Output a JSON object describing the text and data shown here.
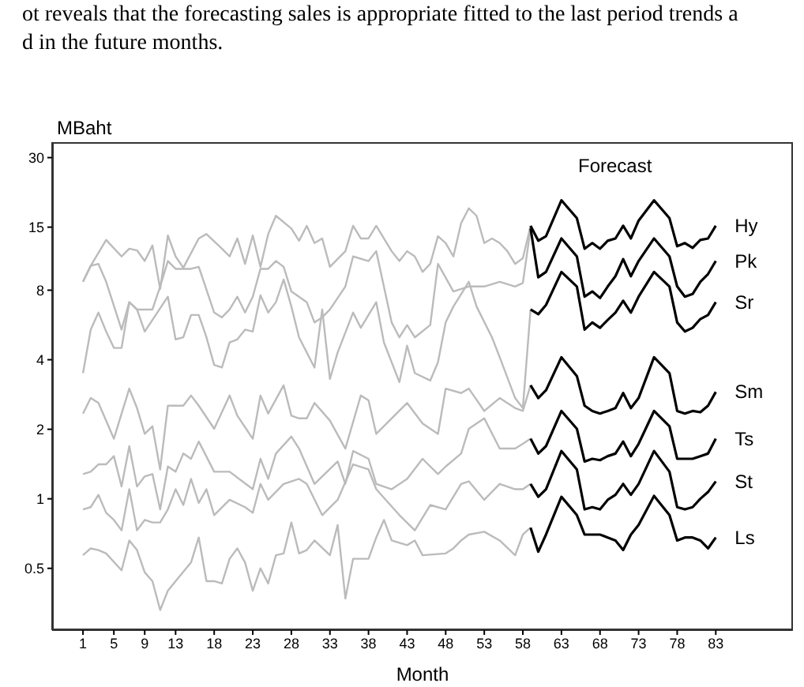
{
  "chart_data": {
    "type": "line",
    "xlabel": "Month",
    "ylabel": "MBaht",
    "annotations": [
      "ot reveals that the forecasting sales is appropriate fitted to the last period trends a",
      "d in the future months.",
      "Forecast"
    ],
    "xlim": [
      -3,
      93
    ],
    "xticks": [
      1,
      5,
      9,
      13,
      18,
      23,
      28,
      33,
      38,
      43,
      48,
      53,
      58,
      63,
      68,
      73,
      78,
      83
    ],
    "ylim": [
      0.27,
      35
    ],
    "yticks": [
      0.5,
      1,
      2,
      4,
      8,
      15,
      30
    ],
    "log": "y",
    "grid": false,
    "legend": false,
    "marker": "none",
    "line_style": "solid",
    "series": [
      {
        "color": "#bbbbbb",
        "x": [
          1,
          2,
          4,
          6,
          7,
          8,
          9,
          10,
          11,
          12,
          13,
          14,
          16,
          17,
          19,
          20,
          21,
          22,
          23,
          24,
          25,
          26,
          28,
          29,
          30,
          31,
          32,
          33,
          35,
          36,
          37,
          38,
          39,
          41,
          42,
          43,
          44,
          45,
          46,
          47,
          48,
          49,
          50,
          51,
          52,
          53,
          54,
          55,
          56,
          57,
          58,
          59
        ],
        "values": [
          8.7,
          10.2,
          13.2,
          11.2,
          12.1,
          11.9,
          10.7,
          12.5,
          8.1,
          13.8,
          11.2,
          10,
          13.4,
          14,
          12.1,
          11.2,
          13.4,
          10.4,
          13.8,
          10.1,
          14,
          16.8,
          14.8,
          13.1,
          15.2,
          12.8,
          13.4,
          10.1,
          11.8,
          15.2,
          13.4,
          13.4,
          15.2,
          11.8,
          10.7,
          11.8,
          11.2,
          9.6,
          10.4,
          13.7,
          12.8,
          11.2,
          15.6,
          18.1,
          16.8,
          12.8,
          13.4,
          12.8,
          11.8,
          10.4,
          11,
          15.2
        ]
      },
      {
        "color": "#bbbbbb",
        "x": [
          1,
          2,
          3,
          4,
          6,
          7,
          8,
          10,
          11,
          12,
          13,
          15,
          16,
          18,
          19,
          20,
          21,
          22,
          23,
          24,
          25,
          26,
          27,
          28,
          30,
          31,
          32,
          33,
          35,
          36,
          38,
          39,
          41,
          42,
          43,
          44,
          46,
          47,
          49,
          51,
          53,
          55,
          57,
          58,
          59
        ],
        "values": [
          8.7,
          10.2,
          10.4,
          8.7,
          5.4,
          7.1,
          6.6,
          6.6,
          8.3,
          10.7,
          9.9,
          9.9,
          10.1,
          6.4,
          6.1,
          6.6,
          7.5,
          6.4,
          7.5,
          9.9,
          9.9,
          10.7,
          10.1,
          7.9,
          7.1,
          5.8,
          6.1,
          6.6,
          8.3,
          11.2,
          10.7,
          11.8,
          5.8,
          5,
          5.65,
          5,
          5.65,
          10.4,
          7.9,
          8.3,
          8.3,
          8.7,
          8.3,
          8.6,
          14.8
        ]
      },
      {
        "color": "#bbbbbb",
        "x": [
          1,
          2,
          3,
          4,
          5,
          6,
          7,
          8,
          9,
          10,
          12,
          13,
          14,
          15,
          16,
          17,
          18,
          19,
          20,
          21,
          22,
          23,
          24,
          25,
          26,
          27,
          28,
          29,
          31,
          32,
          33,
          34,
          36,
          37,
          39,
          40,
          42,
          43,
          44,
          46,
          47,
          48,
          49,
          51,
          52,
          54,
          55,
          57,
          58,
          59
        ],
        "values": [
          3.5,
          5.4,
          6.4,
          5.3,
          4.5,
          4.5,
          7.1,
          6.6,
          5.3,
          5.95,
          7.5,
          4.9,
          5,
          6.25,
          6.25,
          5,
          3.8,
          3.7,
          4.75,
          4.9,
          5.4,
          5.3,
          7.6,
          6.4,
          7.1,
          8.9,
          6.8,
          5,
          3.7,
          6.6,
          3.3,
          4.3,
          6.4,
          5.5,
          7.1,
          4.75,
          3.2,
          4.6,
          3.5,
          3.25,
          3.9,
          5.8,
          6.8,
          8.7,
          6.8,
          5,
          4.1,
          2.73,
          2.47,
          6.6
        ]
      },
      {
        "color": "#bbbbbb",
        "x": [
          1,
          2,
          3,
          4,
          5,
          7,
          8,
          9,
          10,
          11,
          12,
          14,
          15,
          16,
          18,
          20,
          21,
          23,
          24,
          25,
          27,
          28,
          29,
          30,
          31,
          33,
          35,
          37,
          38,
          39,
          41,
          43,
          45,
          47,
          48,
          50,
          51,
          53,
          55,
          57,
          58,
          59
        ],
        "values": [
          2.34,
          2.73,
          2.6,
          2.18,
          1.82,
          3,
          2.47,
          1.91,
          2.06,
          1.34,
          2.53,
          2.53,
          2.8,
          2.53,
          2.01,
          2.8,
          2.29,
          1.82,
          2.8,
          2.34,
          3.1,
          2.29,
          2.23,
          2.23,
          2.6,
          2.18,
          1.65,
          2.8,
          2.67,
          1.91,
          2.23,
          2.6,
          2.12,
          1.91,
          3,
          2.87,
          3,
          2.4,
          2.73,
          2.47,
          2.4,
          3.1
        ]
      },
      {
        "color": "#bbbbbb",
        "x": [
          1,
          2,
          3,
          4,
          5,
          6,
          7,
          8,
          9,
          10,
          11,
          12,
          13,
          14,
          15,
          16,
          18,
          20,
          23,
          24,
          25,
          26,
          28,
          29,
          31,
          34,
          35,
          36,
          38,
          39,
          41,
          43,
          45,
          47,
          48,
          50,
          51,
          53,
          55,
          57,
          58,
          59
        ],
        "values": [
          1.28,
          1.31,
          1.41,
          1.41,
          1.53,
          1.13,
          1.69,
          1.13,
          1.25,
          1.28,
          0.9,
          1.38,
          1.31,
          1.57,
          1.49,
          1.77,
          1.31,
          1.31,
          1.1,
          1.49,
          1.22,
          1.57,
          1.86,
          1.65,
          1.16,
          1.45,
          1.16,
          1.61,
          1.49,
          1.16,
          1.1,
          1.22,
          1.49,
          1.28,
          1.38,
          1.57,
          2.01,
          2.23,
          1.65,
          1.65,
          1.73,
          1.82
        ]
      },
      {
        "color": "#bbbbbb",
        "x": [
          1,
          2,
          3,
          4,
          5,
          6,
          7,
          8,
          9,
          10,
          11,
          12,
          13,
          14,
          15,
          16,
          17,
          18,
          20,
          22,
          23,
          24,
          25,
          27,
          29,
          30,
          32,
          34,
          36,
          38,
          39,
          42,
          44,
          46,
          48,
          50,
          51,
          53,
          55,
          57,
          58,
          59
        ],
        "values": [
          0.9,
          0.92,
          1.04,
          0.87,
          0.81,
          0.73,
          1.1,
          0.73,
          0.81,
          0.79,
          0.79,
          0.9,
          1.1,
          0.94,
          1.22,
          0.96,
          1.1,
          0.85,
          0.99,
          0.92,
          0.87,
          1.16,
          0.99,
          1.16,
          1.22,
          1.16,
          0.85,
          0.99,
          1.41,
          1.34,
          1.1,
          0.85,
          0.73,
          0.94,
          0.9,
          1.16,
          1.19,
          0.99,
          1.16,
          1.1,
          1.1,
          1.16
        ]
      },
      {
        "color": "#bbbbbb",
        "x": [
          1,
          2,
          3,
          4,
          6,
          7,
          8,
          9,
          10,
          11,
          12,
          13,
          15,
          16,
          17,
          18,
          19,
          20,
          21,
          22,
          23,
          24,
          25,
          26,
          27,
          28,
          29,
          30,
          31,
          33,
          34,
          35,
          36,
          38,
          39,
          40,
          41,
          43,
          44,
          45,
          48,
          49,
          50,
          51,
          53,
          55,
          57,
          58,
          59
        ],
        "values": [
          0.57,
          0.61,
          0.6,
          0.58,
          0.49,
          0.66,
          0.6,
          0.48,
          0.44,
          0.33,
          0.4,
          0.44,
          0.53,
          0.68,
          0.44,
          0.44,
          0.43,
          0.55,
          0.61,
          0.53,
          0.4,
          0.5,
          0.43,
          0.57,
          0.58,
          0.79,
          0.58,
          0.6,
          0.66,
          0.57,
          0.77,
          0.37,
          0.55,
          0.55,
          0.68,
          0.81,
          0.66,
          0.63,
          0.66,
          0.57,
          0.58,
          0.61,
          0.66,
          0.7,
          0.72,
          0.66,
          0.57,
          0.7,
          0.75
        ]
      },
      {
        "name": "Hy",
        "color": "#000000",
        "x": [
          59,
          60,
          61,
          63,
          65,
          66,
          67,
          68,
          69,
          70,
          71,
          72,
          73,
          75,
          77,
          78,
          79,
          80,
          81,
          82,
          83
        ],
        "values": [
          15.2,
          13.1,
          13.7,
          19.6,
          16.4,
          12.1,
          12.8,
          12.1,
          13.1,
          13.4,
          15.2,
          13.4,
          16,
          19.6,
          16.4,
          12.4,
          12.8,
          12.2,
          13.2,
          13.4,
          15.2
        ]
      },
      {
        "name": "Pk",
        "color": "#000000",
        "x": [
          59,
          60,
          61,
          63,
          65,
          66,
          67,
          68,
          69,
          70,
          71,
          72,
          73,
          75,
          77,
          78,
          79,
          80,
          81,
          82,
          83
        ],
        "values": [
          14.8,
          9.1,
          9.6,
          13.4,
          11.2,
          7.5,
          7.9,
          7.4,
          8.3,
          9.2,
          10.9,
          9.2,
          10.7,
          13.4,
          11.2,
          8.3,
          7.5,
          7.7,
          8.7,
          9.4,
          10.7
        ]
      },
      {
        "name": "Sr",
        "color": "#000000",
        "x": [
          59,
          60,
          61,
          63,
          65,
          66,
          67,
          68,
          69,
          70,
          71,
          72,
          73,
          75,
          77,
          78,
          79,
          80,
          81,
          82,
          83
        ],
        "values": [
          6.6,
          6.3,
          6.9,
          9.6,
          8.3,
          5.4,
          5.8,
          5.5,
          5.95,
          6.4,
          7.2,
          6.4,
          7.5,
          9.6,
          8.3,
          5.8,
          5.3,
          5.5,
          6,
          6.25,
          7.1
        ]
      },
      {
        "name": "Sm",
        "color": "#000000",
        "x": [
          59,
          60,
          61,
          63,
          65,
          66,
          67,
          68,
          69,
          70,
          71,
          72,
          73,
          75,
          77,
          78,
          79,
          80,
          81,
          82,
          83
        ],
        "values": [
          3.1,
          2.73,
          2.95,
          4.1,
          3.4,
          2.53,
          2.4,
          2.34,
          2.4,
          2.47,
          2.87,
          2.47,
          2.73,
          4.1,
          3.5,
          2.4,
          2.34,
          2.4,
          2.37,
          2.53,
          2.9
        ]
      },
      {
        "name": "Ts",
        "color": "#000000",
        "x": [
          59,
          60,
          61,
          63,
          65,
          66,
          67,
          68,
          69,
          70,
          71,
          72,
          73,
          75,
          77,
          78,
          79,
          80,
          81,
          82,
          83
        ],
        "values": [
          1.82,
          1.57,
          1.69,
          2.4,
          2.01,
          1.45,
          1.49,
          1.47,
          1.53,
          1.57,
          1.77,
          1.53,
          1.73,
          2.4,
          2.06,
          1.49,
          1.49,
          1.49,
          1.53,
          1.57,
          1.82
        ]
      },
      {
        "name": "St",
        "color": "#000000",
        "x": [
          59,
          60,
          61,
          63,
          65,
          66,
          67,
          68,
          69,
          70,
          71,
          72,
          73,
          75,
          77,
          78,
          79,
          80,
          81,
          82,
          83
        ],
        "values": [
          1.16,
          1.02,
          1.1,
          1.61,
          1.34,
          0.9,
          0.92,
          0.9,
          0.99,
          1.04,
          1.16,
          1.04,
          1.16,
          1.61,
          1.31,
          0.92,
          0.9,
          0.92,
          1,
          1.07,
          1.19
        ]
      },
      {
        "name": "Ls",
        "color": "#000000",
        "x": [
          59,
          60,
          61,
          63,
          65,
          66,
          67,
          68,
          69,
          70,
          71,
          72,
          73,
          75,
          77,
          78,
          79,
          80,
          81,
          82,
          83
        ],
        "values": [
          0.75,
          0.59,
          0.7,
          1.02,
          0.85,
          0.7,
          0.7,
          0.7,
          0.68,
          0.66,
          0.6,
          0.7,
          0.77,
          1.03,
          0.85,
          0.66,
          0.68,
          0.68,
          0.66,
          0.61,
          0.68
        ]
      }
    ]
  }
}
